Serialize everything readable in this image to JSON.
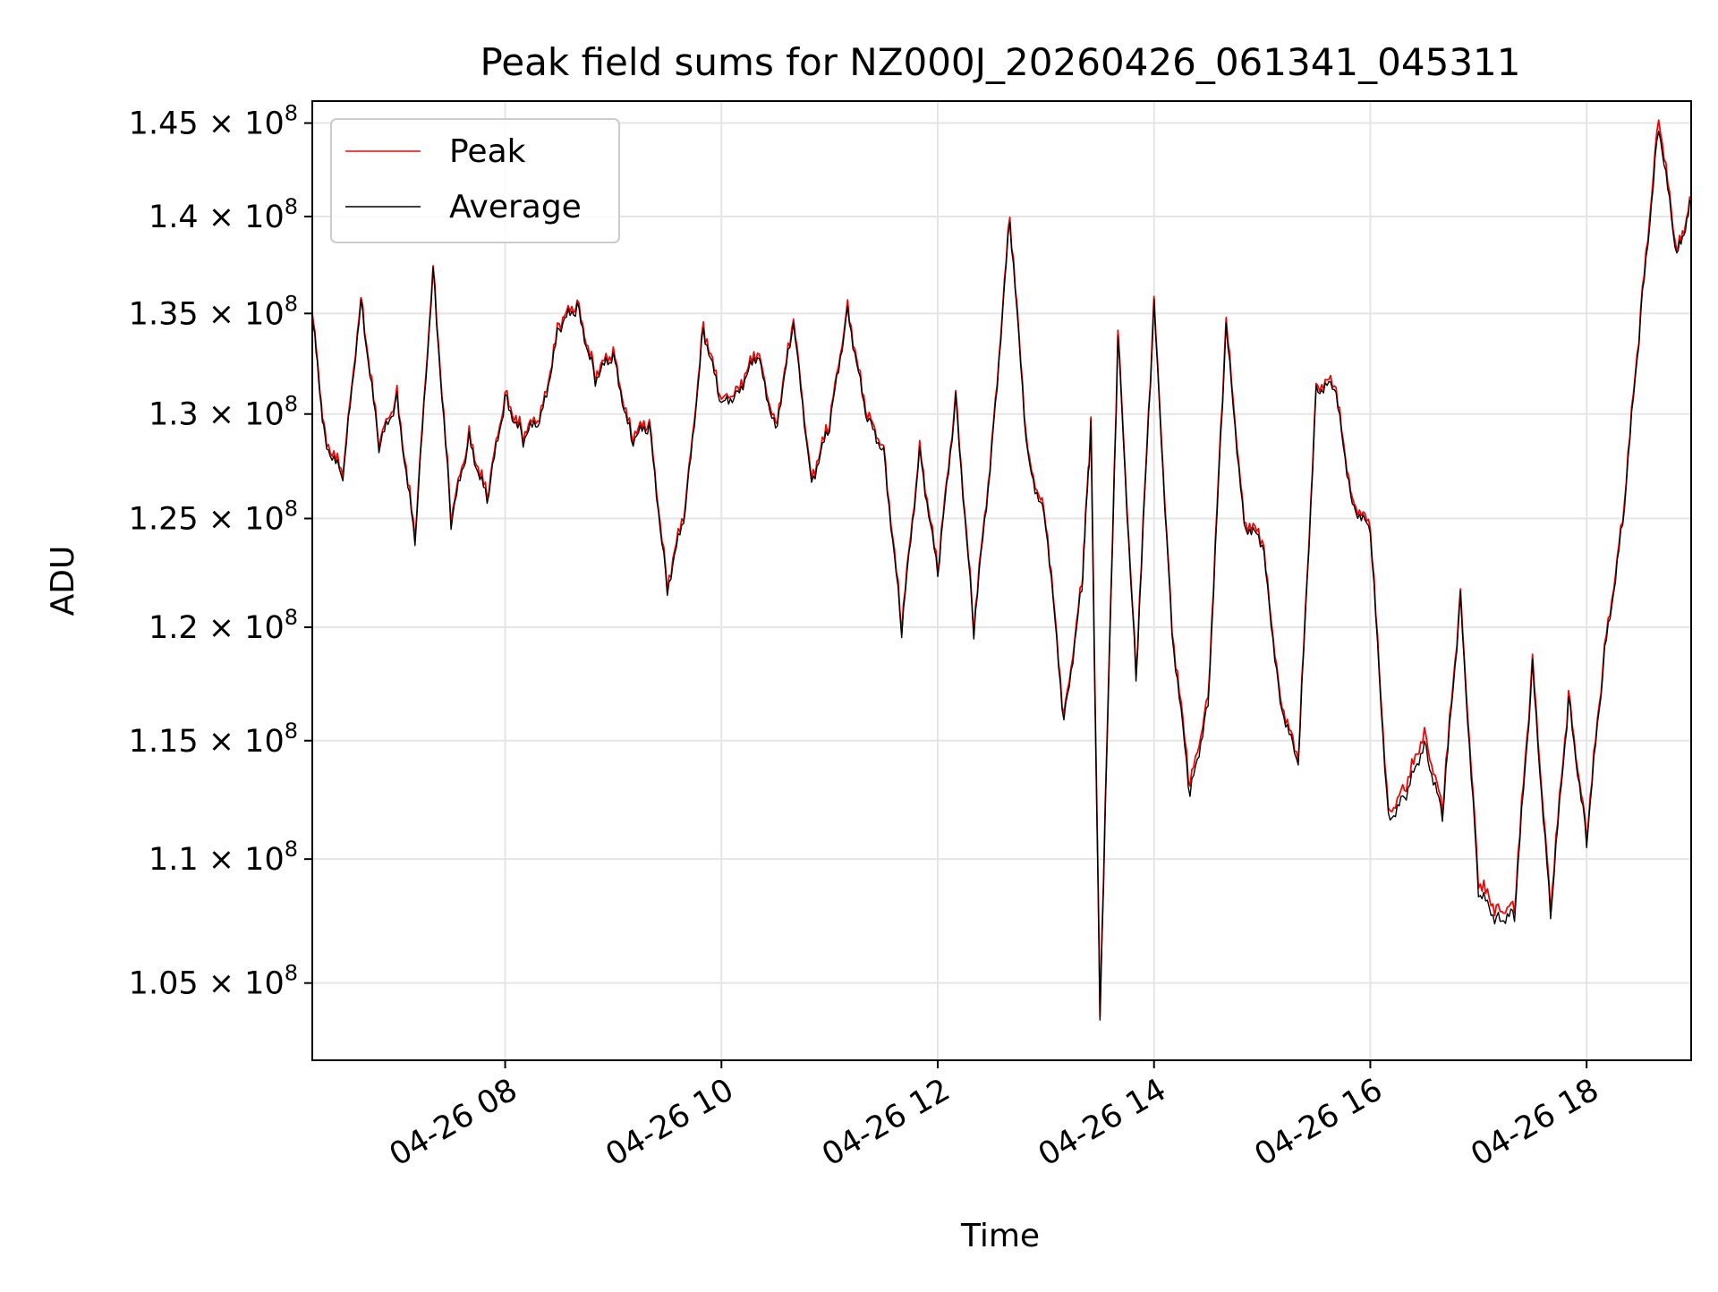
{
  "chart_data": {
    "type": "line",
    "title": "Peak field sums for NZ000J_20260426_061341_045311",
    "xlabel": "Time",
    "ylabel": "ADU",
    "y_scale": "log",
    "x_range": [
      "2026-04-26 06:13",
      "2026-04-26 18:58"
    ],
    "ylim": [
      102000000,
      146200000
    ],
    "grid": true,
    "legend_position": "upper-left",
    "x_ticks": [
      {
        "t": "2026-04-26 08:00",
        "label": "04-26 08"
      },
      {
        "t": "2026-04-26 10:00",
        "label": "04-26 10"
      },
      {
        "t": "2026-04-26 12:00",
        "label": "04-26 12"
      },
      {
        "t": "2026-04-26 14:00",
        "label": "04-26 14"
      },
      {
        "t": "2026-04-26 16:00",
        "label": "04-26 16"
      },
      {
        "t": "2026-04-26 18:00",
        "label": "04-26 18"
      }
    ],
    "y_ticks": [
      {
        "value": 105000000,
        "mantissa": "1.05",
        "exponent": "8"
      },
      {
        "value": 110000000,
        "mantissa": "1.1",
        "exponent": "8"
      },
      {
        "value": 115000000,
        "mantissa": "1.15",
        "exponent": "8"
      },
      {
        "value": 120000000,
        "mantissa": "1.2",
        "exponent": "8"
      },
      {
        "value": 125000000,
        "mantissa": "1.25",
        "exponent": "8"
      },
      {
        "value": 130000000,
        "mantissa": "1.3",
        "exponent": "8"
      },
      {
        "value": 135000000,
        "mantissa": "1.35",
        "exponent": "8"
      },
      {
        "value": 140000000,
        "mantissa": "1.4",
        "exponent": "8"
      },
      {
        "value": 145000000,
        "mantissa": "1.45",
        "exponent": "8"
      }
    ],
    "x": [
      "2026-04-26 06:13",
      "2026-04-26 06:20",
      "2026-04-26 06:30",
      "2026-04-26 06:40",
      "2026-04-26 06:50",
      "2026-04-26 07:00",
      "2026-04-26 07:10",
      "2026-04-26 07:20",
      "2026-04-26 07:30",
      "2026-04-26 07:40",
      "2026-04-26 07:50",
      "2026-04-26 08:00",
      "2026-04-26 08:10",
      "2026-04-26 08:20",
      "2026-04-26 08:30",
      "2026-04-26 08:40",
      "2026-04-26 08:50",
      "2026-04-26 09:00",
      "2026-04-26 09:10",
      "2026-04-26 09:20",
      "2026-04-26 09:30",
      "2026-04-26 09:40",
      "2026-04-26 09:50",
      "2026-04-26 10:00",
      "2026-04-26 10:10",
      "2026-04-26 10:20",
      "2026-04-26 10:30",
      "2026-04-26 10:40",
      "2026-04-26 10:50",
      "2026-04-26 11:00",
      "2026-04-26 11:10",
      "2026-04-26 11:20",
      "2026-04-26 11:30",
      "2026-04-26 11:40",
      "2026-04-26 11:50",
      "2026-04-26 12:00",
      "2026-04-26 12:10",
      "2026-04-26 12:20",
      "2026-04-26 12:30",
      "2026-04-26 12:40",
      "2026-04-26 12:50",
      "2026-04-26 13:00",
      "2026-04-26 13:10",
      "2026-04-26 13:20",
      "2026-04-26 13:25",
      "2026-04-26 13:30",
      "2026-04-26 13:40",
      "2026-04-26 13:50",
      "2026-04-26 14:00",
      "2026-04-26 14:10",
      "2026-04-26 14:20",
      "2026-04-26 14:30",
      "2026-04-26 14:40",
      "2026-04-26 14:50",
      "2026-04-26 15:00",
      "2026-04-26 15:10",
      "2026-04-26 15:20",
      "2026-04-26 15:30",
      "2026-04-26 15:40",
      "2026-04-26 15:50",
      "2026-04-26 16:00",
      "2026-04-26 16:10",
      "2026-04-26 16:20",
      "2026-04-26 16:30",
      "2026-04-26 16:40",
      "2026-04-26 16:50",
      "2026-04-26 17:00",
      "2026-04-26 17:10",
      "2026-04-26 17:20",
      "2026-04-26 17:30",
      "2026-04-26 17:40",
      "2026-04-26 17:50",
      "2026-04-26 18:00",
      "2026-04-26 18:10",
      "2026-04-26 18:20",
      "2026-04-26 18:30",
      "2026-04-26 18:40",
      "2026-04-26 18:50",
      "2026-04-26 18:58"
    ],
    "series": [
      {
        "name": "Peak",
        "color": "#ff0000",
        "values": [
          135000000,
          129000000,
          127000000,
          136000000,
          128500000,
          131000000,
          124000000,
          137500000,
          125000000,
          129000000,
          126000000,
          131000000,
          129000000,
          130000000,
          134500000,
          135500000,
          132000000,
          133000000,
          129000000,
          129500000,
          122000000,
          125500000,
          134500000,
          130500000,
          131500000,
          133000000,
          129500000,
          134500000,
          127000000,
          129500000,
          135500000,
          130000000,
          128500000,
          120000000,
          128500000,
          122500000,
          131000000,
          120000000,
          128500000,
          140000000,
          128000000,
          125000000,
          116000000,
          122000000,
          129500000,
          104000000,
          134000000,
          118000000,
          135500000,
          120000000,
          113000000,
          117000000,
          134500000,
          125000000,
          124000000,
          117000000,
          114000000,
          131500000,
          131500000,
          126000000,
          124500000,
          112000000,
          113000000,
          115500000,
          112000000,
          121500000,
          109000000,
          108000000,
          108000000,
          118500000,
          108000000,
          117000000,
          111000000,
          119000000,
          125000000,
          135000000,
          145500000,
          138000000,
          141000000
        ],
        "jitter": 1
      },
      {
        "name": "Average",
        "color": "#000000",
        "values": [
          134800000,
          128800000,
          126800000,
          135800000,
          128300000,
          130800000,
          123800000,
          137300000,
          124800000,
          128800000,
          125800000,
          130800000,
          128800000,
          129800000,
          134300000,
          135300000,
          131800000,
          132800000,
          128800000,
          129300000,
          121800000,
          125300000,
          134300000,
          130300000,
          131300000,
          132800000,
          129300000,
          134300000,
          126800000,
          129300000,
          135300000,
          129800000,
          128300000,
          119800000,
          128300000,
          122300000,
          130800000,
          119800000,
          128300000,
          139800000,
          127800000,
          124800000,
          115800000,
          121800000,
          129300000,
          103800000,
          133800000,
          117800000,
          135300000,
          119800000,
          112600000,
          116700000,
          134200000,
          124800000,
          123800000,
          116800000,
          113800000,
          131300000,
          131300000,
          125800000,
          124300000,
          111700000,
          112600000,
          115000000,
          111700000,
          121300000,
          108600000,
          107600000,
          107700000,
          118200000,
          107700000,
          116800000,
          110800000,
          118800000,
          124800000,
          134800000,
          145000000,
          137800000,
          140800000
        ],
        "jitter": 0
      }
    ]
  }
}
